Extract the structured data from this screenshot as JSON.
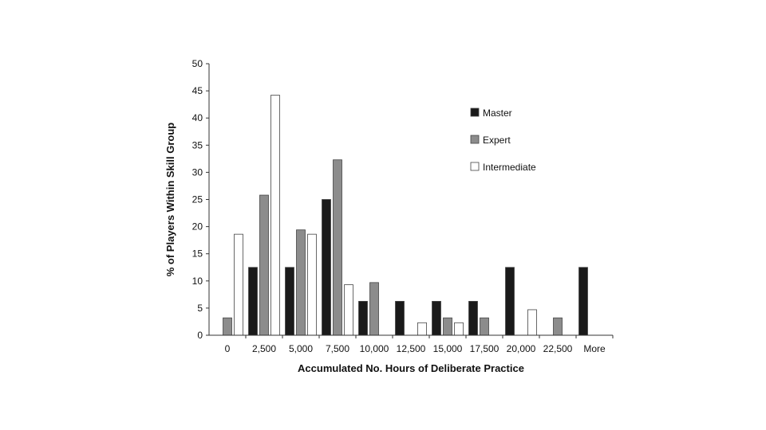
{
  "chart_data": {
    "type": "bar",
    "title": "",
    "xlabel": "Accumulated No. Hours of Deliberate Practice",
    "ylabel": "% of Players Within Skill Group",
    "ylim": [
      0,
      50
    ],
    "yticks": [
      "0",
      "5",
      "10",
      "15",
      "20",
      "25",
      "30",
      "35",
      "40",
      "45",
      "50"
    ],
    "grid": false,
    "legend_position": "top-right",
    "categories": [
      "0",
      "2,500",
      "5,000",
      "7,500",
      "10,000",
      "12,500",
      "15,000",
      "17,500",
      "20,000",
      "22,500",
      "More"
    ],
    "series": [
      {
        "name": "Master",
        "color": "#1a1a1a",
        "values": [
          0,
          12.5,
          12.5,
          25,
          6.25,
          6.25,
          6.25,
          6.25,
          12.5,
          0,
          12.5
        ]
      },
      {
        "name": "Expert",
        "color": "#8c8c8c",
        "values": [
          3.2,
          25.8,
          19.4,
          32.3,
          9.7,
          0,
          3.2,
          3.2,
          0,
          3.2,
          0
        ]
      },
      {
        "name": "Intermediate",
        "color": "#ffffff",
        "values": [
          18.6,
          44.2,
          18.6,
          9.3,
          0,
          2.3,
          2.3,
          0,
          4.7,
          0,
          0
        ]
      }
    ]
  }
}
